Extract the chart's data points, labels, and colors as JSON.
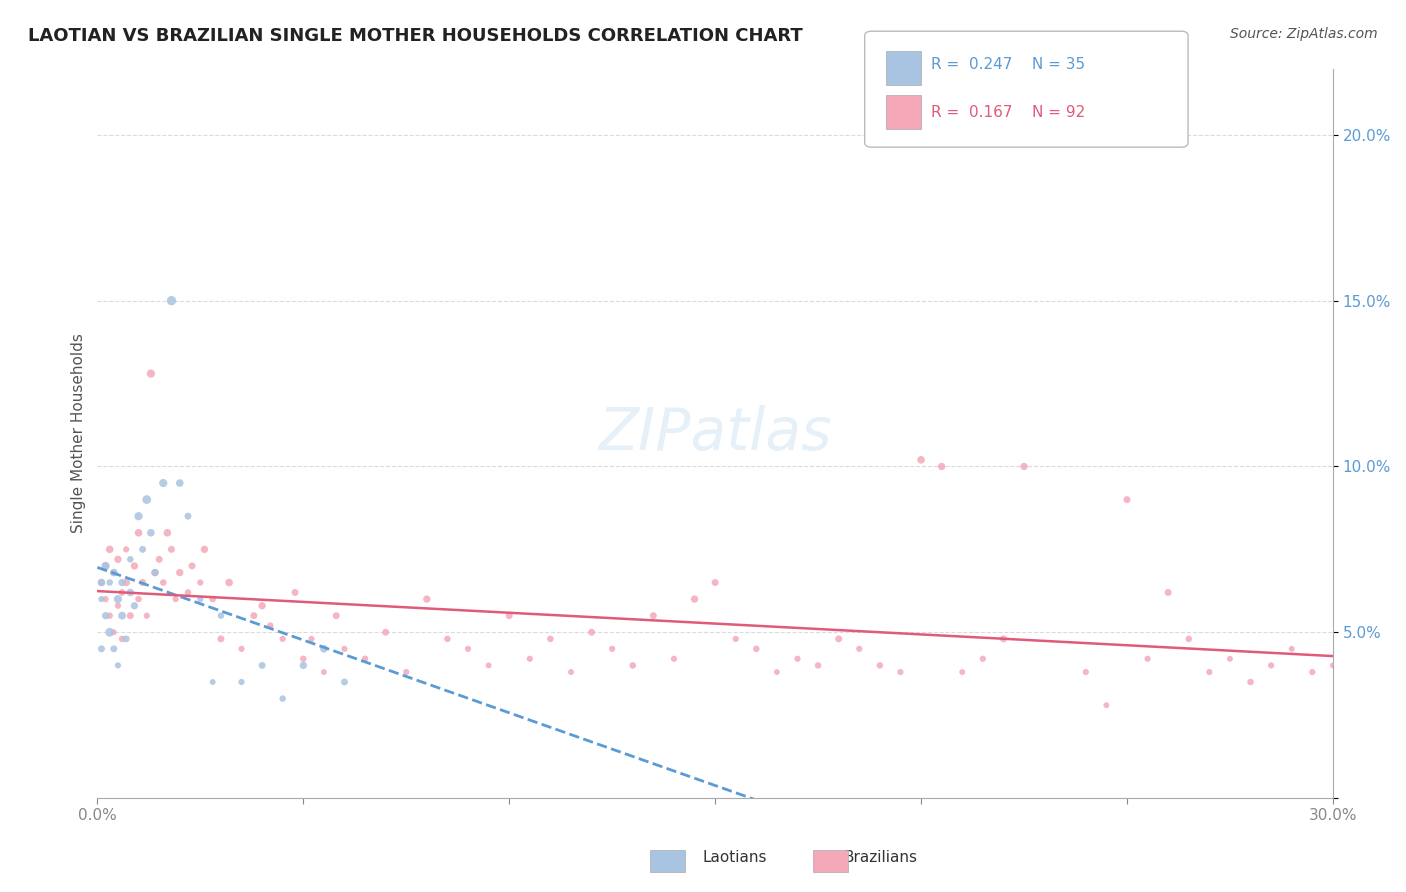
{
  "title": "LAOTIAN VS BRAZILIAN SINGLE MOTHER HOUSEHOLDS CORRELATION CHART",
  "source": "Source: ZipAtlas.com",
  "xlabel": "",
  "ylabel": "Single Mother Households",
  "xlim": [
    0.0,
    0.3
  ],
  "ylim": [
    0.0,
    0.22
  ],
  "xticks": [
    0.0,
    0.05,
    0.1,
    0.15,
    0.2,
    0.25,
    0.3
  ],
  "xtick_labels": [
    "0.0%",
    "",
    "",
    "",
    "",
    "",
    "30.0%"
  ],
  "yticks": [
    0.0,
    0.05,
    0.1,
    0.15,
    0.2
  ],
  "ytick_labels": [
    "",
    "5.0%",
    "10.0%",
    "15.0%",
    "20.0%"
  ],
  "background_color": "#ffffff",
  "grid_color": "#cccccc",
  "laotian_color": "#a8c4e0",
  "brazilian_color": "#f4a8b8",
  "laotian_line_color": "#5b9bd5",
  "brazilian_line_color": "#e05a7a",
  "axis_label_color": "#5b9bd5",
  "tick_color": "#5b9bd5",
  "R_laotian": 0.247,
  "N_laotian": 35,
  "R_brazilian": 0.167,
  "N_brazilian": 92,
  "watermark": "ZIPatlas",
  "laotian_scatter": [
    [
      0.001,
      0.065
    ],
    [
      0.001,
      0.045
    ],
    [
      0.001,
      0.06
    ],
    [
      0.002,
      0.07
    ],
    [
      0.002,
      0.055
    ],
    [
      0.003,
      0.065
    ],
    [
      0.003,
      0.05
    ],
    [
      0.004,
      0.068
    ],
    [
      0.004,
      0.045
    ],
    [
      0.005,
      0.06
    ],
    [
      0.005,
      0.04
    ],
    [
      0.006,
      0.065
    ],
    [
      0.006,
      0.055
    ],
    [
      0.007,
      0.048
    ],
    [
      0.008,
      0.072
    ],
    [
      0.008,
      0.062
    ],
    [
      0.009,
      0.058
    ],
    [
      0.01,
      0.085
    ],
    [
      0.011,
      0.075
    ],
    [
      0.012,
      0.09
    ],
    [
      0.013,
      0.08
    ],
    [
      0.014,
      0.068
    ],
    [
      0.016,
      0.095
    ],
    [
      0.018,
      0.15
    ],
    [
      0.02,
      0.095
    ],
    [
      0.022,
      0.085
    ],
    [
      0.025,
      0.06
    ],
    [
      0.028,
      0.035
    ],
    [
      0.03,
      0.055
    ],
    [
      0.035,
      0.035
    ],
    [
      0.04,
      0.04
    ],
    [
      0.045,
      0.03
    ],
    [
      0.05,
      0.04
    ],
    [
      0.055,
      0.045
    ],
    [
      0.06,
      0.035
    ]
  ],
  "laotian_sizes": [
    30,
    25,
    20,
    35,
    28,
    22,
    40,
    30,
    25,
    35,
    20,
    28,
    32,
    25,
    22,
    30,
    28,
    35,
    25,
    40,
    30,
    28,
    35,
    45,
    30,
    25,
    20,
    18,
    22,
    20,
    25,
    22,
    28,
    30,
    25
  ],
  "brazilian_scatter": [
    [
      0.001,
      0.065
    ],
    [
      0.002,
      0.06
    ],
    [
      0.002,
      0.07
    ],
    [
      0.003,
      0.055
    ],
    [
      0.003,
      0.075
    ],
    [
      0.004,
      0.05
    ],
    [
      0.004,
      0.068
    ],
    [
      0.005,
      0.058
    ],
    [
      0.005,
      0.072
    ],
    [
      0.006,
      0.048
    ],
    [
      0.006,
      0.062
    ],
    [
      0.007,
      0.065
    ],
    [
      0.007,
      0.075
    ],
    [
      0.008,
      0.055
    ],
    [
      0.009,
      0.07
    ],
    [
      0.01,
      0.06
    ],
    [
      0.01,
      0.08
    ],
    [
      0.011,
      0.065
    ],
    [
      0.012,
      0.055
    ],
    [
      0.013,
      0.128
    ],
    [
      0.014,
      0.068
    ],
    [
      0.015,
      0.072
    ],
    [
      0.016,
      0.065
    ],
    [
      0.017,
      0.08
    ],
    [
      0.018,
      0.075
    ],
    [
      0.019,
      0.06
    ],
    [
      0.02,
      0.068
    ],
    [
      0.022,
      0.062
    ],
    [
      0.023,
      0.07
    ],
    [
      0.025,
      0.065
    ],
    [
      0.026,
      0.075
    ],
    [
      0.028,
      0.06
    ],
    [
      0.03,
      0.048
    ],
    [
      0.032,
      0.065
    ],
    [
      0.035,
      0.045
    ],
    [
      0.038,
      0.055
    ],
    [
      0.04,
      0.058
    ],
    [
      0.042,
      0.052
    ],
    [
      0.045,
      0.048
    ],
    [
      0.048,
      0.062
    ],
    [
      0.05,
      0.042
    ],
    [
      0.052,
      0.048
    ],
    [
      0.055,
      0.038
    ],
    [
      0.058,
      0.055
    ],
    [
      0.06,
      0.045
    ],
    [
      0.065,
      0.042
    ],
    [
      0.07,
      0.05
    ],
    [
      0.075,
      0.038
    ],
    [
      0.08,
      0.06
    ],
    [
      0.085,
      0.048
    ],
    [
      0.09,
      0.045
    ],
    [
      0.095,
      0.04
    ],
    [
      0.1,
      0.055
    ],
    [
      0.105,
      0.042
    ],
    [
      0.11,
      0.048
    ],
    [
      0.115,
      0.038
    ],
    [
      0.12,
      0.05
    ],
    [
      0.125,
      0.045
    ],
    [
      0.13,
      0.04
    ],
    [
      0.135,
      0.055
    ],
    [
      0.14,
      0.042
    ],
    [
      0.145,
      0.06
    ],
    [
      0.15,
      0.065
    ],
    [
      0.155,
      0.048
    ],
    [
      0.16,
      0.045
    ],
    [
      0.165,
      0.038
    ],
    [
      0.17,
      0.042
    ],
    [
      0.175,
      0.04
    ],
    [
      0.18,
      0.048
    ],
    [
      0.185,
      0.045
    ],
    [
      0.19,
      0.04
    ],
    [
      0.195,
      0.038
    ],
    [
      0.2,
      0.102
    ],
    [
      0.205,
      0.1
    ],
    [
      0.21,
      0.038
    ],
    [
      0.215,
      0.042
    ],
    [
      0.22,
      0.048
    ],
    [
      0.225,
      0.1
    ],
    [
      0.24,
      0.038
    ],
    [
      0.245,
      0.028
    ],
    [
      0.25,
      0.09
    ],
    [
      0.255,
      0.042
    ],
    [
      0.26,
      0.062
    ],
    [
      0.265,
      0.048
    ],
    [
      0.27,
      0.038
    ],
    [
      0.275,
      0.042
    ],
    [
      0.28,
      0.035
    ],
    [
      0.285,
      0.04
    ],
    [
      0.29,
      0.045
    ],
    [
      0.295,
      0.038
    ],
    [
      0.3,
      0.04
    ],
    [
      0.305,
      0.038
    ]
  ],
  "brazilian_sizes": [
    25,
    20,
    28,
    22,
    30,
    18,
    25,
    20,
    28,
    22,
    25,
    30,
    20,
    25,
    28,
    22,
    30,
    25,
    20,
    35,
    28,
    25,
    22,
    30,
    25,
    20,
    28,
    22,
    25,
    20,
    28,
    22,
    25,
    30,
    20,
    25,
    28,
    22,
    20,
    25,
    22,
    20,
    18,
    25,
    20,
    22,
    25,
    20,
    28,
    22,
    20,
    18,
    25,
    20,
    22,
    18,
    25,
    20,
    22,
    25,
    20,
    28,
    25,
    20,
    22,
    18,
    20,
    22,
    25,
    20,
    22,
    20,
    30,
    28,
    18,
    20,
    25,
    28,
    20,
    18,
    25,
    20,
    25,
    22,
    20,
    18,
    22,
    20,
    18,
    20,
    18,
    20
  ]
}
